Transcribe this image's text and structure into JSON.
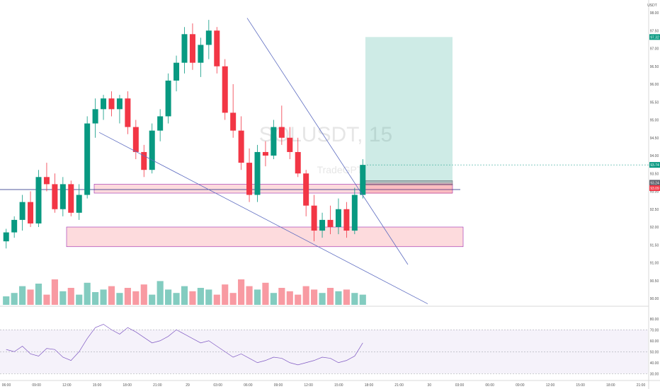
{
  "chart_data": {
    "type": "candlestick",
    "symbol_watermark": "SOLUSDT, 15",
    "watermark_sub": "TradeGPT",
    "currency_label": "USDT",
    "price_axis": {
      "ylim": [
        90.0,
        98.0
      ],
      "tick_labels": [
        "98.00",
        "97.50",
        "97.00",
        "96.50",
        "96.00",
        "95.50",
        "95.00",
        "94.50",
        "94.00",
        "93.50",
        "93.00",
        "92.50",
        "92.00",
        "91.50",
        "91.00",
        "90.50",
        "90.00"
      ],
      "badges": [
        {
          "label": "97.32",
          "value": 97.32,
          "color": "#089981"
        },
        {
          "label": "93.74",
          "value": 93.74,
          "color": "#089981"
        },
        {
          "label": "93.24",
          "value": 93.24,
          "color": "#5d606b"
        },
        {
          "label": "93.09",
          "value": 93.09,
          "color": "#f23645"
        }
      ]
    },
    "time_axis": {
      "tick_labels": [
        "06:00",
        "09:00",
        "12:00",
        "15:00",
        "18:00",
        "21:00",
        "29",
        "03:00",
        "06:00",
        "09:00",
        "12:00",
        "15:00",
        "18:00",
        "21:00",
        "30",
        "03:00",
        "06:00",
        "09:00",
        "12:00",
        "15:00",
        "18:00",
        "21:00"
      ]
    },
    "ohlc_sampled": {
      "note_columns": [
        "open",
        "high",
        "low",
        "close"
      ],
      "candles": [
        [
          91.6,
          91.95,
          91.4,
          91.85
        ],
        [
          91.85,
          92.3,
          91.7,
          92.2
        ],
        [
          92.2,
          92.9,
          91.9,
          92.7
        ],
        [
          92.7,
          93.0,
          92.0,
          92.1
        ],
        [
          92.1,
          93.6,
          92.0,
          93.4
        ],
        [
          93.4,
          93.8,
          93.0,
          93.2
        ],
        [
          93.2,
          93.5,
          92.4,
          92.5
        ],
        [
          92.5,
          93.4,
          92.3,
          93.2
        ],
        [
          93.2,
          93.3,
          92.3,
          92.4
        ],
        [
          92.4,
          93.2,
          92.2,
          92.9
        ],
        [
          92.9,
          95.1,
          92.8,
          94.9
        ],
        [
          94.9,
          95.6,
          94.5,
          95.3
        ],
        [
          95.3,
          95.7,
          95.0,
          95.6
        ],
        [
          95.6,
          95.8,
          95.1,
          95.3
        ],
        [
          95.3,
          95.7,
          94.9,
          95.6
        ],
        [
          95.6,
          95.8,
          94.6,
          94.8
        ],
        [
          94.8,
          95.0,
          93.9,
          94.1
        ],
        [
          94.1,
          94.3,
          93.4,
          93.6
        ],
        [
          93.6,
          94.9,
          93.5,
          94.7
        ],
        [
          94.7,
          95.3,
          94.4,
          95.1
        ],
        [
          95.1,
          96.3,
          94.9,
          96.1
        ],
        [
          96.1,
          96.8,
          95.8,
          96.6
        ],
        [
          96.6,
          97.6,
          96.3,
          97.4
        ],
        [
          97.4,
          97.7,
          96.4,
          96.6
        ],
        [
          96.6,
          97.3,
          96.2,
          97.1
        ],
        [
          97.1,
          97.8,
          96.7,
          97.5
        ],
        [
          97.5,
          97.6,
          96.3,
          96.5
        ],
        [
          96.5,
          96.7,
          95.0,
          95.2
        ],
        [
          95.2,
          96.0,
          94.5,
          94.7
        ],
        [
          94.7,
          95.1,
          93.6,
          93.8
        ],
        [
          93.8,
          94.2,
          92.7,
          92.9
        ],
        [
          92.9,
          94.3,
          92.7,
          94.1
        ],
        [
          94.1,
          94.4,
          93.7,
          94.0
        ],
        [
          94.0,
          95.0,
          93.9,
          94.8
        ],
        [
          94.8,
          95.4,
          94.3,
          94.5
        ],
        [
          94.5,
          94.8,
          93.9,
          94.1
        ],
        [
          94.1,
          94.5,
          93.4,
          93.5
        ],
        [
          93.5,
          93.6,
          92.3,
          92.6
        ],
        [
          92.6,
          92.9,
          91.6,
          91.9
        ],
        [
          91.9,
          92.4,
          91.7,
          92.2
        ],
        [
          92.2,
          92.6,
          91.8,
          92.0
        ],
        [
          92.0,
          92.8,
          91.8,
          92.5
        ],
        [
          92.5,
          92.7,
          91.7,
          91.9
        ],
        [
          91.9,
          93.1,
          91.8,
          92.9
        ],
        [
          92.9,
          93.9,
          92.8,
          93.74
        ]
      ]
    },
    "volume_sampled": [
      10,
      14,
      22,
      18,
      25,
      12,
      30,
      16,
      20,
      12,
      26,
      15,
      18,
      22,
      14,
      20,
      16,
      24,
      12,
      28,
      18,
      14,
      22,
      16,
      20,
      18,
      12,
      24,
      14,
      30,
      22,
      18,
      26,
      14,
      20,
      16,
      12,
      22,
      18,
      14,
      20,
      16,
      18,
      14,
      12
    ],
    "rsi": {
      "bands": [
        70,
        50,
        30
      ],
      "tick_labels": [
        "80.00",
        "70.00",
        "60.00",
        "50.00",
        "40.00",
        "30.00"
      ],
      "values": [
        52,
        50,
        55,
        48,
        46,
        53,
        52,
        45,
        42,
        50,
        62,
        72,
        75,
        70,
        66,
        72,
        68,
        63,
        58,
        60,
        64,
        70,
        66,
        62,
        58,
        60,
        55,
        50,
        45,
        48,
        44,
        40,
        42,
        45,
        44,
        40,
        38,
        40,
        42,
        45,
        44,
        40,
        42,
        46,
        58
      ]
    },
    "drawings": {
      "long_position": {
        "entry": 93.24,
        "target": 97.32,
        "stop": 93.09
      },
      "zones": [
        {
          "top": 93.2,
          "bottom": 92.95
        },
        {
          "top": 92.0,
          "bottom": 91.45
        }
      ],
      "horizontal_line": 93.05,
      "trendlines": [
        "descending resistance",
        "lower support"
      ]
    }
  }
}
